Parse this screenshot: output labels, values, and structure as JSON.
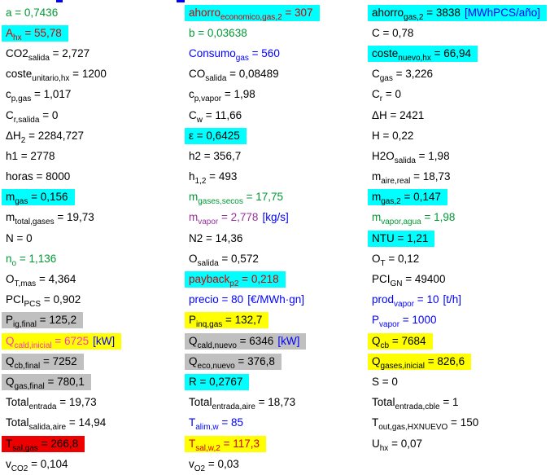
{
  "meta": {
    "equals": " = "
  },
  "colors": {
    "text_default": "#000000",
    "text_green": "#009934",
    "text_blue": "#0000FF",
    "text_red": "#D40000",
    "text_magenta": "#FF33CC",
    "text_purple": "#993399",
    "unit": "#0000FF",
    "hl_cyan": "#00FFFF",
    "hl_yellow": "#FFFF00",
    "hl_gray": "#C0C0C0",
    "hl_red": "#EE0000",
    "fragment_blue": "#0000FF"
  },
  "columns": [
    {
      "items": [
        {
          "base": "a",
          "sub": "",
          "value": "0,7436",
          "fg": "green"
        },
        {
          "base": "A",
          "sub": "hx",
          "value": "55,78",
          "fg": "red",
          "bg": "cyan"
        },
        {
          "base": "CO2",
          "sub": "salida",
          "value": "2,727"
        },
        {
          "base": "coste",
          "sub": "unitario,hx",
          "value": "1200"
        },
        {
          "base": "c",
          "sub": "p,gas",
          "value": "1,017"
        },
        {
          "base": "C",
          "sub": "r,salida",
          "value": "0"
        },
        {
          "base": "ΔH",
          "sub": "2",
          "value": "2284,727"
        },
        {
          "base": "h1",
          "sub": "",
          "value": "2778"
        },
        {
          "base": "horas",
          "sub": "",
          "value": "8000"
        },
        {
          "base": "m",
          "sub": "gas",
          "value": "0,156",
          "bg": "cyan"
        },
        {
          "base": "m",
          "sub": "total,gases",
          "value": "19,73"
        },
        {
          "base": "N",
          "sub": "",
          "value": "0"
        },
        {
          "base": "n",
          "sub": "o",
          "value": "1,136",
          "fg": "green"
        },
        {
          "base": "O",
          "sub": "T,mas",
          "value": "4,364"
        },
        {
          "base": "PCI",
          "sub": "PCS",
          "value": "0,902"
        },
        {
          "base": "P",
          "sub": "ig,final",
          "value": "125,2",
          "bg": "gray"
        },
        {
          "base": "Q",
          "sub": "cald,inicial",
          "value": "6725",
          "unit": "[kW]",
          "fg": "magenta",
          "bg": "yellow"
        },
        {
          "base": "Q",
          "sub": "cb,final",
          "value": "7252",
          "bg": "gray"
        },
        {
          "base": "Q",
          "sub": "gas,final",
          "value": "780,1",
          "bg": "gray"
        },
        {
          "base": "Total",
          "sub": "entrada",
          "value": "19,73"
        },
        {
          "base": "Total",
          "sub": "salida,aire",
          "value": "14,94"
        },
        {
          "base": "T",
          "sub": "sal,gas",
          "value": "266,8",
          "bg": "red"
        },
        {
          "base": "v",
          "sub": "CO2",
          "value": "0,104"
        }
      ]
    },
    {
      "items": [
        {
          "base": "ahorro",
          "sub": "economico,gas,2",
          "value": "307",
          "fg": "red",
          "bg": "cyan"
        },
        {
          "base": "b",
          "sub": "",
          "value": "0,03638",
          "fg": "green"
        },
        {
          "base": "Consumo",
          "sub": "gas",
          "value": "560",
          "fg": "blue"
        },
        {
          "base": "CO",
          "sub": "salida",
          "value": "0,08489"
        },
        {
          "base": "c",
          "sub": "p,vapor",
          "value": "1,98"
        },
        {
          "base": "C",
          "sub": "w",
          "value": "11,66"
        },
        {
          "base": "ε",
          "sub": "",
          "value": "0,6425",
          "bg": "cyan"
        },
        {
          "base": "h2",
          "sub": "",
          "value": "356,7"
        },
        {
          "base": "h",
          "sub": "1,2",
          "value": "493"
        },
        {
          "base": "m",
          "sub": "gases,secos",
          "value": "17,75",
          "fg": "green"
        },
        {
          "base": "m",
          "sub": "vapor",
          "value": "2,778",
          "unit": "[kg/s]",
          "fg": "purple"
        },
        {
          "base": "N2",
          "sub": "",
          "value": "14,36"
        },
        {
          "base": "O",
          "sub": "salida",
          "value": "0,572"
        },
        {
          "base": "payback",
          "sub": "p2",
          "value": "0,218",
          "fg": "red",
          "bg": "cyan"
        },
        {
          "base": "precio",
          "sub": "",
          "value": "80",
          "unit": "[€/MWh·gn]",
          "fg": "blue"
        },
        {
          "base": "P",
          "sub": "inq,gas",
          "value": "132,7",
          "bg": "yellow"
        },
        {
          "base": "Q",
          "sub": "cald,nuevo",
          "value": "6346",
          "unit": "[kW]",
          "bg": "gray"
        },
        {
          "base": "Q",
          "sub": "eco,nuevo",
          "value": "376,8",
          "bg": "gray"
        },
        {
          "base": "R",
          "sub": "",
          "value": "0,2767",
          "bg": "cyan"
        },
        {
          "base": "Total",
          "sub": "entrada,aire",
          "value": "18,73"
        },
        {
          "base": "T",
          "sub": "alim,w",
          "value": "85",
          "fg": "blue"
        },
        {
          "base": "T",
          "sub": "sal,w,2",
          "value": "117,3",
          "fg": "red",
          "bg": "yellow"
        },
        {
          "base": "v",
          "sub": "O2",
          "value": "0,03"
        }
      ]
    },
    {
      "items": [
        {
          "base": "ahorro",
          "sub": "gas,2",
          "value": "3838",
          "unit": "[MWhPCS/año]",
          "bg": "cyan"
        },
        {
          "base": "C",
          "sub": "",
          "value": "0,78"
        },
        {
          "base": "coste",
          "sub": "nuevo,hx",
          "value": "66,94",
          "bg": "cyan"
        },
        {
          "base": "C",
          "sub": "gas",
          "value": "3,226"
        },
        {
          "base": "C",
          "sub": "r",
          "value": "0"
        },
        {
          "base": "ΔH",
          "sub": "",
          "value": "2421"
        },
        {
          "base": "H",
          "sub": "",
          "value": "0,22"
        },
        {
          "base": "H2O",
          "sub": "salida",
          "value": "1,98"
        },
        {
          "base": "m",
          "sub": "aire,real",
          "value": "18,73"
        },
        {
          "base": "m",
          "sub": "gas,2",
          "value": "0,147",
          "bg": "cyan"
        },
        {
          "base": "m",
          "sub": "vapor,agua",
          "value": "1,98",
          "fg": "green"
        },
        {
          "base": "NTU",
          "sub": "",
          "value": "1,21",
          "bg": "cyan"
        },
        {
          "base": "O",
          "sub": "T",
          "value": "0,12"
        },
        {
          "base": "PCI",
          "sub": "GN",
          "value": "49400"
        },
        {
          "base": "prod",
          "sub": "vapor",
          "value": "10",
          "unit": "[t/h]",
          "fg": "blue"
        },
        {
          "base": "P",
          "sub": "vapor",
          "value": "1000",
          "fg": "blue"
        },
        {
          "base": "Q",
          "sub": "cb",
          "value": "7684",
          "bg": "yellow"
        },
        {
          "base": "Q",
          "sub": "gases,inicial",
          "value": "826,6",
          "bg": "yellow"
        },
        {
          "base": "S",
          "sub": "",
          "value": "0"
        },
        {
          "base": "Total",
          "sub": "entrada,cble",
          "value": "1"
        },
        {
          "base": "T",
          "sub": "out,gas,HXNUEVO",
          "value": "150"
        },
        {
          "base": "U",
          "sub": "hx",
          "value": "0,07"
        }
      ]
    }
  ]
}
